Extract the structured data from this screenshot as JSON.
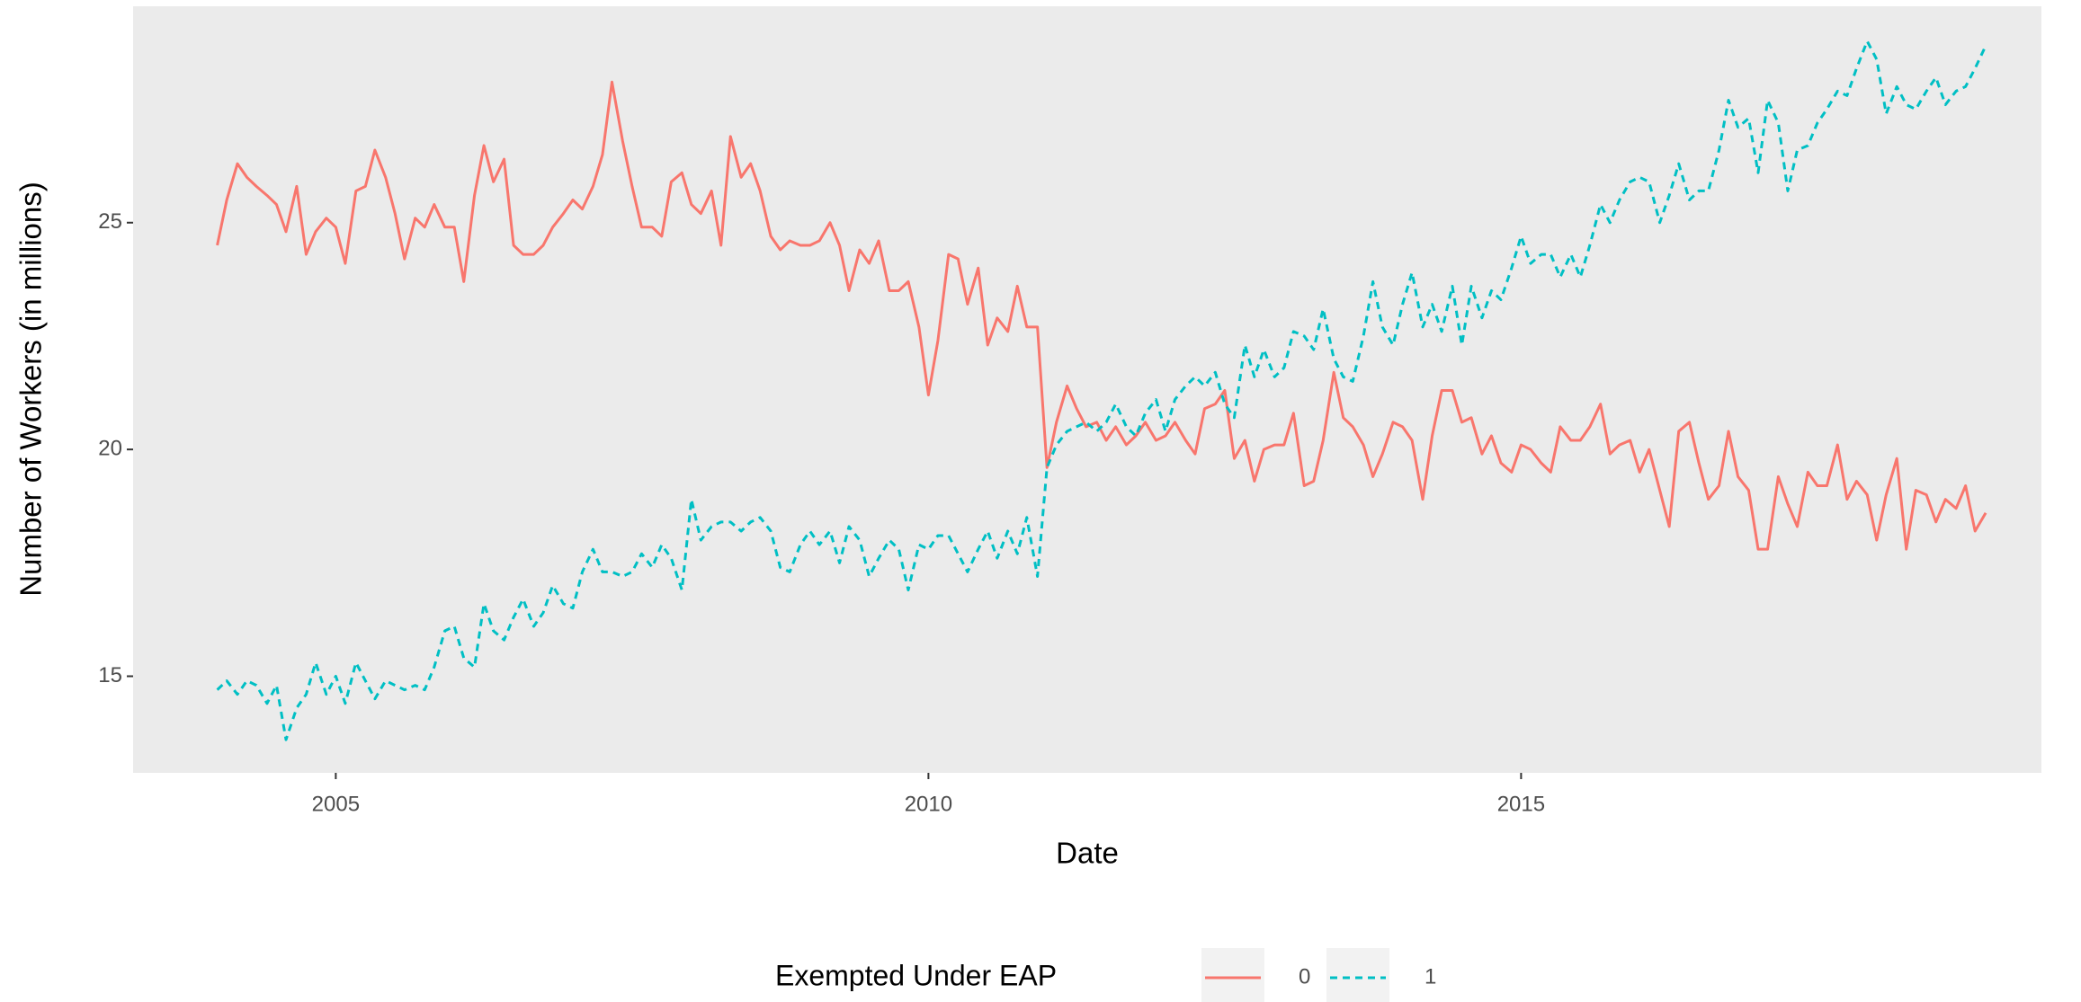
{
  "chart_data": {
    "type": "line",
    "xlabel": "Date",
    "ylabel": "Number of Workers (in millions)",
    "legend_title": "Exempted Under EAP",
    "legend_position": "bottom",
    "grid": true,
    "xlim": [
      2003.29,
      2019.39
    ],
    "xticks": [
      2005,
      2010,
      2015
    ],
    "ylim": [
      12.87,
      29.77
    ],
    "yticks": [
      15,
      20,
      25
    ],
    "x": [
      2004,
      2004.08,
      2004.17,
      2004.25,
      2004.33,
      2004.42,
      2004.5,
      2004.58,
      2004.67,
      2004.75,
      2004.83,
      2004.92,
      2005,
      2005.08,
      2005.17,
      2005.25,
      2005.33,
      2005.42,
      2005.5,
      2005.58,
      2005.67,
      2005.75,
      2005.83,
      2005.92,
      2006,
      2006.08,
      2006.17,
      2006.25,
      2006.33,
      2006.42,
      2006.5,
      2006.58,
      2006.67,
      2006.75,
      2006.83,
      2006.92,
      2007,
      2007.08,
      2007.17,
      2007.25,
      2007.33,
      2007.42,
      2007.5,
      2007.58,
      2007.67,
      2007.75,
      2007.83,
      2007.92,
      2008,
      2008.08,
      2008.17,
      2008.25,
      2008.33,
      2008.42,
      2008.5,
      2008.58,
      2008.67,
      2008.75,
      2008.83,
      2008.92,
      2009,
      2009.08,
      2009.17,
      2009.25,
      2009.33,
      2009.42,
      2009.5,
      2009.58,
      2009.67,
      2009.75,
      2009.83,
      2009.92,
      2010,
      2010.08,
      2010.17,
      2010.25,
      2010.33,
      2010.42,
      2010.5,
      2010.58,
      2010.67,
      2010.75,
      2010.83,
      2010.92,
      2011,
      2011.08,
      2011.17,
      2011.25,
      2011.33,
      2011.42,
      2011.5,
      2011.58,
      2011.67,
      2011.75,
      2011.83,
      2011.92,
      2012,
      2012.08,
      2012.17,
      2012.25,
      2012.33,
      2012.42,
      2012.5,
      2012.58,
      2012.67,
      2012.75,
      2012.83,
      2012.92,
      2013,
      2013.08,
      2013.17,
      2013.25,
      2013.33,
      2013.42,
      2013.5,
      2013.58,
      2013.67,
      2013.75,
      2013.83,
      2013.92,
      2014,
      2014.08,
      2014.17,
      2014.25,
      2014.33,
      2014.42,
      2014.5,
      2014.58,
      2014.67,
      2014.75,
      2014.83,
      2014.92,
      2015,
      2015.08,
      2015.17,
      2015.25,
      2015.33,
      2015.42,
      2015.5,
      2015.58,
      2015.67,
      2015.75,
      2015.83,
      2015.92,
      2016,
      2016.08,
      2016.17,
      2016.25,
      2016.33,
      2016.42,
      2016.5,
      2016.58,
      2016.67,
      2016.75,
      2016.83,
      2016.92,
      2017,
      2017.08,
      2017.17,
      2017.25,
      2017.33,
      2017.42,
      2017.5,
      2017.58,
      2017.67,
      2017.75,
      2017.83,
      2017.92,
      2018,
      2018.08,
      2018.17,
      2018.25,
      2018.33,
      2018.42,
      2018.5,
      2018.58,
      2018.67,
      2018.75,
      2018.83,
      2018.92
    ],
    "series": [
      {
        "name": "0",
        "color": "#F8766D",
        "linestyle": "solid",
        "values": [
          24.5,
          25.5,
          26.3,
          26.0,
          25.8,
          25.6,
          25.4,
          24.8,
          25.8,
          24.3,
          24.8,
          25.1,
          24.9,
          24.1,
          25.7,
          25.8,
          26.6,
          26.0,
          25.2,
          24.2,
          25.1,
          24.9,
          25.4,
          24.9,
          24.9,
          23.7,
          25.6,
          26.7,
          25.9,
          26.4,
          24.5,
          24.3,
          24.3,
          24.5,
          24.9,
          25.2,
          25.5,
          25.3,
          25.8,
          26.5,
          28.1,
          26.8,
          25.8,
          24.9,
          24.9,
          24.7,
          25.9,
          26.1,
          25.4,
          25.2,
          25.7,
          24.5,
          26.9,
          26.0,
          26.3,
          25.7,
          24.7,
          24.4,
          24.6,
          24.5,
          24.5,
          24.6,
          25.0,
          24.5,
          23.5,
          24.4,
          24.1,
          24.6,
          23.5,
          23.5,
          23.7,
          22.7,
          21.2,
          22.4,
          24.3,
          24.2,
          23.2,
          24.0,
          22.3,
          22.9,
          22.6,
          23.6,
          22.7,
          22.7,
          19.6,
          20.6,
          21.4,
          20.9,
          20.5,
          20.6,
          20.2,
          20.5,
          20.1,
          20.3,
          20.6,
          20.2,
          20.3,
          20.6,
          20.2,
          19.9,
          20.9,
          21.0,
          21.3,
          19.8,
          20.2,
          19.3,
          20.0,
          20.1,
          20.1,
          20.8,
          19.2,
          19.3,
          20.2,
          21.7,
          20.7,
          20.5,
          20.1,
          19.4,
          19.9,
          20.6,
          20.5,
          20.2,
          18.9,
          20.3,
          21.3,
          21.3,
          20.6,
          20.7,
          19.9,
          20.3,
          19.7,
          19.5,
          20.1,
          20.0,
          19.7,
          19.5,
          20.5,
          20.2,
          20.2,
          20.5,
          21.0,
          19.9,
          20.1,
          20.2,
          19.5,
          20.0,
          19.1,
          18.3,
          20.4,
          20.6,
          19.7,
          18.9,
          19.2,
          20.4,
          19.4,
          19.1,
          17.8,
          17.8,
          19.4,
          18.8,
          18.3,
          19.5,
          19.2,
          19.2,
          20.1,
          18.9,
          19.3,
          19.0,
          18.0,
          19.0,
          19.8,
          17.8,
          19.1,
          19.0,
          18.4,
          18.9,
          18.7,
          19.2,
          18.2,
          18.6
        ]
      },
      {
        "name": "1",
        "color": "#00BFC4",
        "linestyle": "dashed",
        "values": [
          14.7,
          14.9,
          14.6,
          14.9,
          14.8,
          14.4,
          14.8,
          13.6,
          14.3,
          14.6,
          15.3,
          14.6,
          15.0,
          14.4,
          15.3,
          14.9,
          14.5,
          14.9,
          14.8,
          14.7,
          14.8,
          14.7,
          15.2,
          16.0,
          16.1,
          15.4,
          15.2,
          16.6,
          16.0,
          15.8,
          16.3,
          16.7,
          16.1,
          16.4,
          17.0,
          16.6,
          16.5,
          17.3,
          17.8,
          17.3,
          17.3,
          17.2,
          17.3,
          17.7,
          17.4,
          17.9,
          17.6,
          16.9,
          18.9,
          18.0,
          18.3,
          18.4,
          18.4,
          18.2,
          18.4,
          18.5,
          18.2,
          17.4,
          17.3,
          17.9,
          18.2,
          17.9,
          18.2,
          17.5,
          18.3,
          18.0,
          17.2,
          17.6,
          18.0,
          17.8,
          16.9,
          17.9,
          17.8,
          18.1,
          18.1,
          17.7,
          17.3,
          17.8,
          18.2,
          17.6,
          18.2,
          17.7,
          18.5,
          17.2,
          19.6,
          20.1,
          20.4,
          20.5,
          20.6,
          20.4,
          20.6,
          21.0,
          20.5,
          20.3,
          20.8,
          21.1,
          20.4,
          21.1,
          21.4,
          21.6,
          21.4,
          21.7,
          21.0,
          20.7,
          22.3,
          21.6,
          22.2,
          21.6,
          21.8,
          22.6,
          22.5,
          22.2,
          23.1,
          22.0,
          21.6,
          21.5,
          22.5,
          23.7,
          22.7,
          22.3,
          23.2,
          23.9,
          22.7,
          23.2,
          22.6,
          23.6,
          22.3,
          23.6,
          22.9,
          23.5,
          23.3,
          24.0,
          24.7,
          24.1,
          24.3,
          24.3,
          23.8,
          24.3,
          23.8,
          24.5,
          25.4,
          25.0,
          25.5,
          25.9,
          26.0,
          25.9,
          25.0,
          25.6,
          26.3,
          25.5,
          25.7,
          25.7,
          26.6,
          27.7,
          27.1,
          27.3,
          26.1,
          27.7,
          27.2,
          25.7,
          26.6,
          26.7,
          27.2,
          27.5,
          27.9,
          27.8,
          28.4,
          29.0,
          28.6,
          27.4,
          28.0,
          27.6,
          27.5,
          27.9,
          28.2,
          27.6,
          27.9,
          28.0,
          28.4,
          28.9
        ]
      }
    ]
  }
}
